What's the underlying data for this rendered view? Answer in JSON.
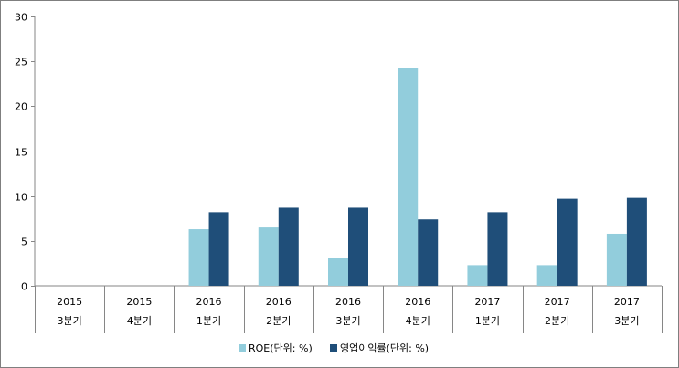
{
  "chart_data": {
    "type": "bar",
    "title": "",
    "xlabel": "",
    "ylabel": "",
    "ylim": [
      0,
      30
    ],
    "yticks": [
      0,
      5,
      10,
      15,
      20,
      25,
      30
    ],
    "grid": false,
    "legend_position": "bottom",
    "categories": [
      [
        "2015",
        "3분기"
      ],
      [
        "2015",
        "4분기"
      ],
      [
        "2016",
        "1분기"
      ],
      [
        "2016",
        "2분기"
      ],
      [
        "2016",
        "3분기"
      ],
      [
        "2016",
        "4분기"
      ],
      [
        "2017",
        "1분기"
      ],
      [
        "2017",
        "2분기"
      ],
      [
        "2017",
        "3분기"
      ]
    ],
    "series": [
      {
        "name": "ROE(단위: %)",
        "color": "#92cddc",
        "values": [
          null,
          null,
          6.3,
          6.5,
          3.1,
          24.3,
          2.3,
          2.3,
          5.8
        ]
      },
      {
        "name": "영업이익률(단위: %)",
        "color": "#1f4e79",
        "values": [
          null,
          null,
          8.2,
          8.7,
          8.7,
          7.4,
          8.2,
          9.7,
          9.8
        ]
      }
    ]
  }
}
